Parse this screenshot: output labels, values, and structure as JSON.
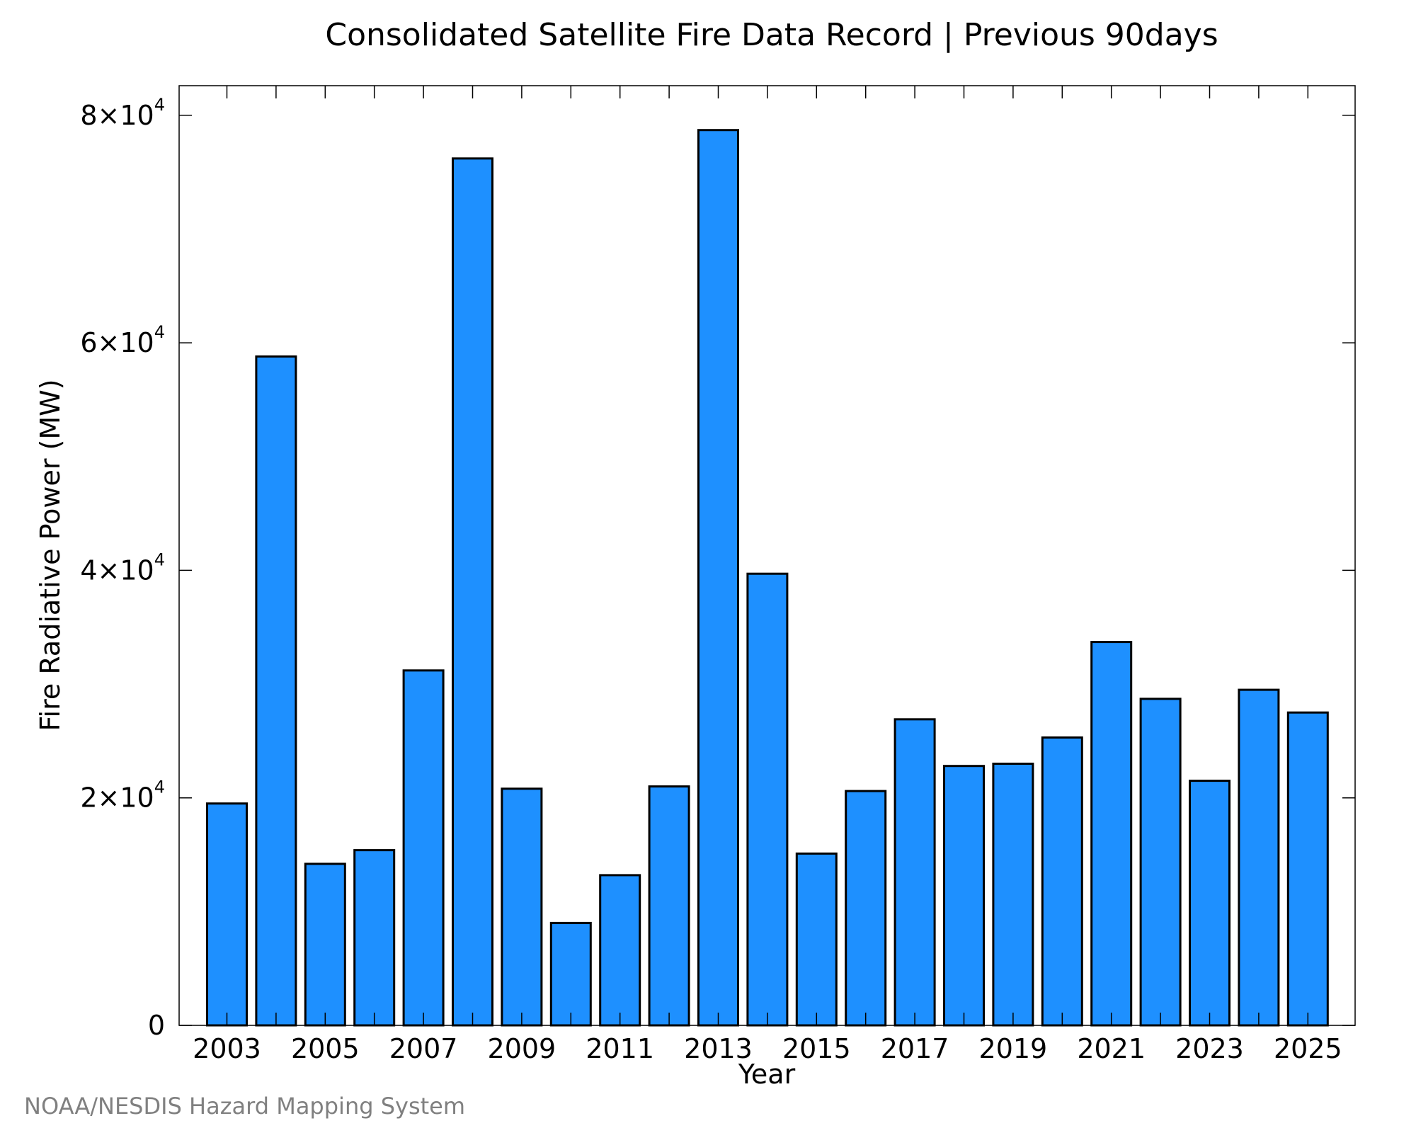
{
  "chart_data": {
    "type": "bar",
    "title": "Consolidated Satellite Fire Data Record | Previous 90days",
    "xlabel": "Year",
    "ylabel": "Fire Radiative Power (MW)",
    "credit": "NOAA/NESDIS Hazard Mapping System",
    "categories": [
      "2003",
      "2004",
      "2005",
      "2006",
      "2007",
      "2008",
      "2009",
      "2010",
      "2011",
      "2012",
      "2013",
      "2014",
      "2015",
      "2016",
      "2017",
      "2018",
      "2019",
      "2020",
      "2021",
      "2022",
      "2023",
      "2024",
      "2025"
    ],
    "values": [
      19500,
      58800,
      14200,
      15400,
      31200,
      76200,
      20800,
      9000,
      13200,
      21000,
      78700,
      39700,
      15100,
      20600,
      26900,
      22800,
      23000,
      25300,
      33700,
      28700,
      21500,
      29500,
      27500
    ],
    "ylim": [
      0,
      82600
    ],
    "y_ticks": [
      {
        "value": 0,
        "mantissa": "0",
        "exponent": ""
      },
      {
        "value": 20000,
        "mantissa": "2×10",
        "exponent": "4"
      },
      {
        "value": 40000,
        "mantissa": "4×10",
        "exponent": "4"
      },
      {
        "value": 60000,
        "mantissa": "6×10",
        "exponent": "4"
      },
      {
        "value": 80000,
        "mantissa": "8×10",
        "exponent": "4"
      }
    ],
    "x_tick_labels": [
      "2003",
      "2005",
      "2007",
      "2009",
      "2011",
      "2013",
      "2015",
      "2017",
      "2019",
      "2021",
      "2023",
      "2025"
    ],
    "bar_color": "#1e90ff",
    "bar_edge_color": "#000000",
    "grid": false,
    "legend": "none"
  }
}
